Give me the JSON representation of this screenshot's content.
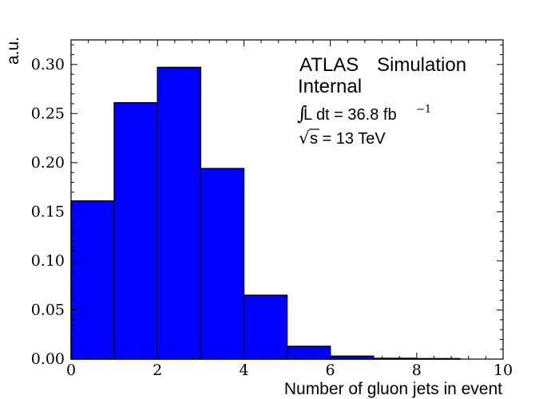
{
  "chart_data": {
    "type": "bar",
    "bin_edges": [
      0,
      1,
      2,
      3,
      4,
      5,
      6,
      7,
      8,
      9,
      10
    ],
    "values": [
      0.161,
      0.261,
      0.297,
      0.194,
      0.065,
      0.013,
      0.003,
      0.0008,
      0.0005,
      0
    ],
    "xlabel": "Number of gluon jets in event",
    "ylabel": "a.u.",
    "xlim": [
      0,
      10
    ],
    "ylim": [
      0,
      0.325
    ],
    "x_ticks": [
      "0",
      "2",
      "4",
      "6",
      "8",
      "10"
    ],
    "y_ticks": [
      "0.00",
      "0.05",
      "0.10",
      "0.15",
      "0.20",
      "0.25",
      "0.30"
    ],
    "grid": false,
    "bar_color": "#0000ff",
    "edge_color": "#000000",
    "annotations": {
      "atlas": "ATLAS",
      "simulation": "Simulation",
      "internal": "Internal",
      "lumi_integral": "∫",
      "lumi_prefix": "L dt = 36.8 fb",
      "lumi_exponent": "−1",
      "energy_sqrt": "√",
      "energy_s": "s",
      "energy_text": " = 13 TeV"
    }
  }
}
